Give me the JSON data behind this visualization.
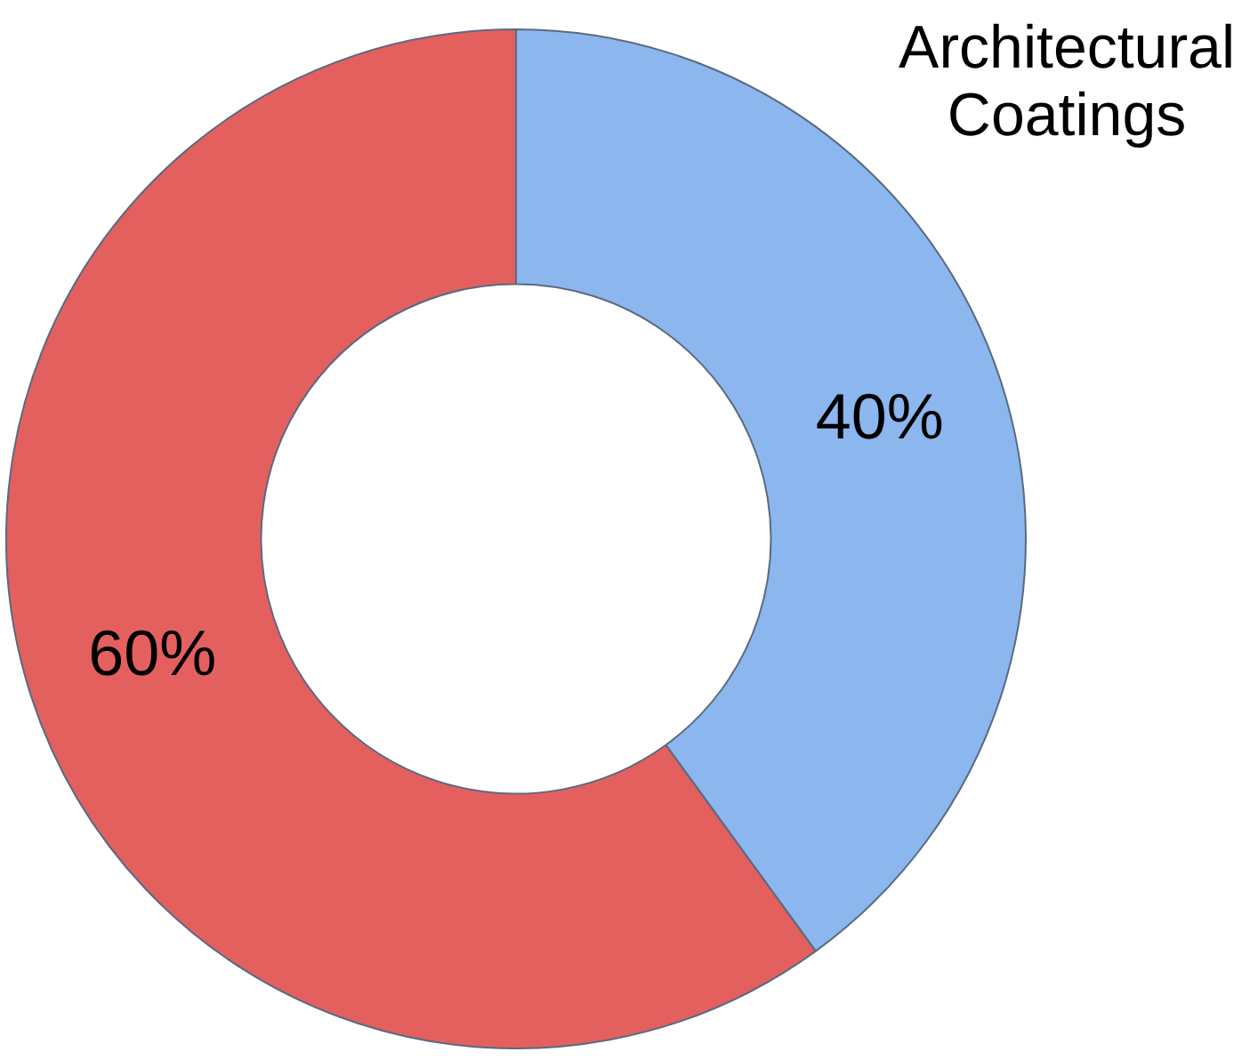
{
  "chart_data": {
    "type": "donut",
    "categories": [
      "Architectural Coatings",
      null
    ],
    "values": [
      40,
      60
    ],
    "colors": [
      "#8cb6ee",
      "#e4605e"
    ],
    "value_labels": [
      "40%",
      "60%"
    ],
    "legend": false
  }
}
